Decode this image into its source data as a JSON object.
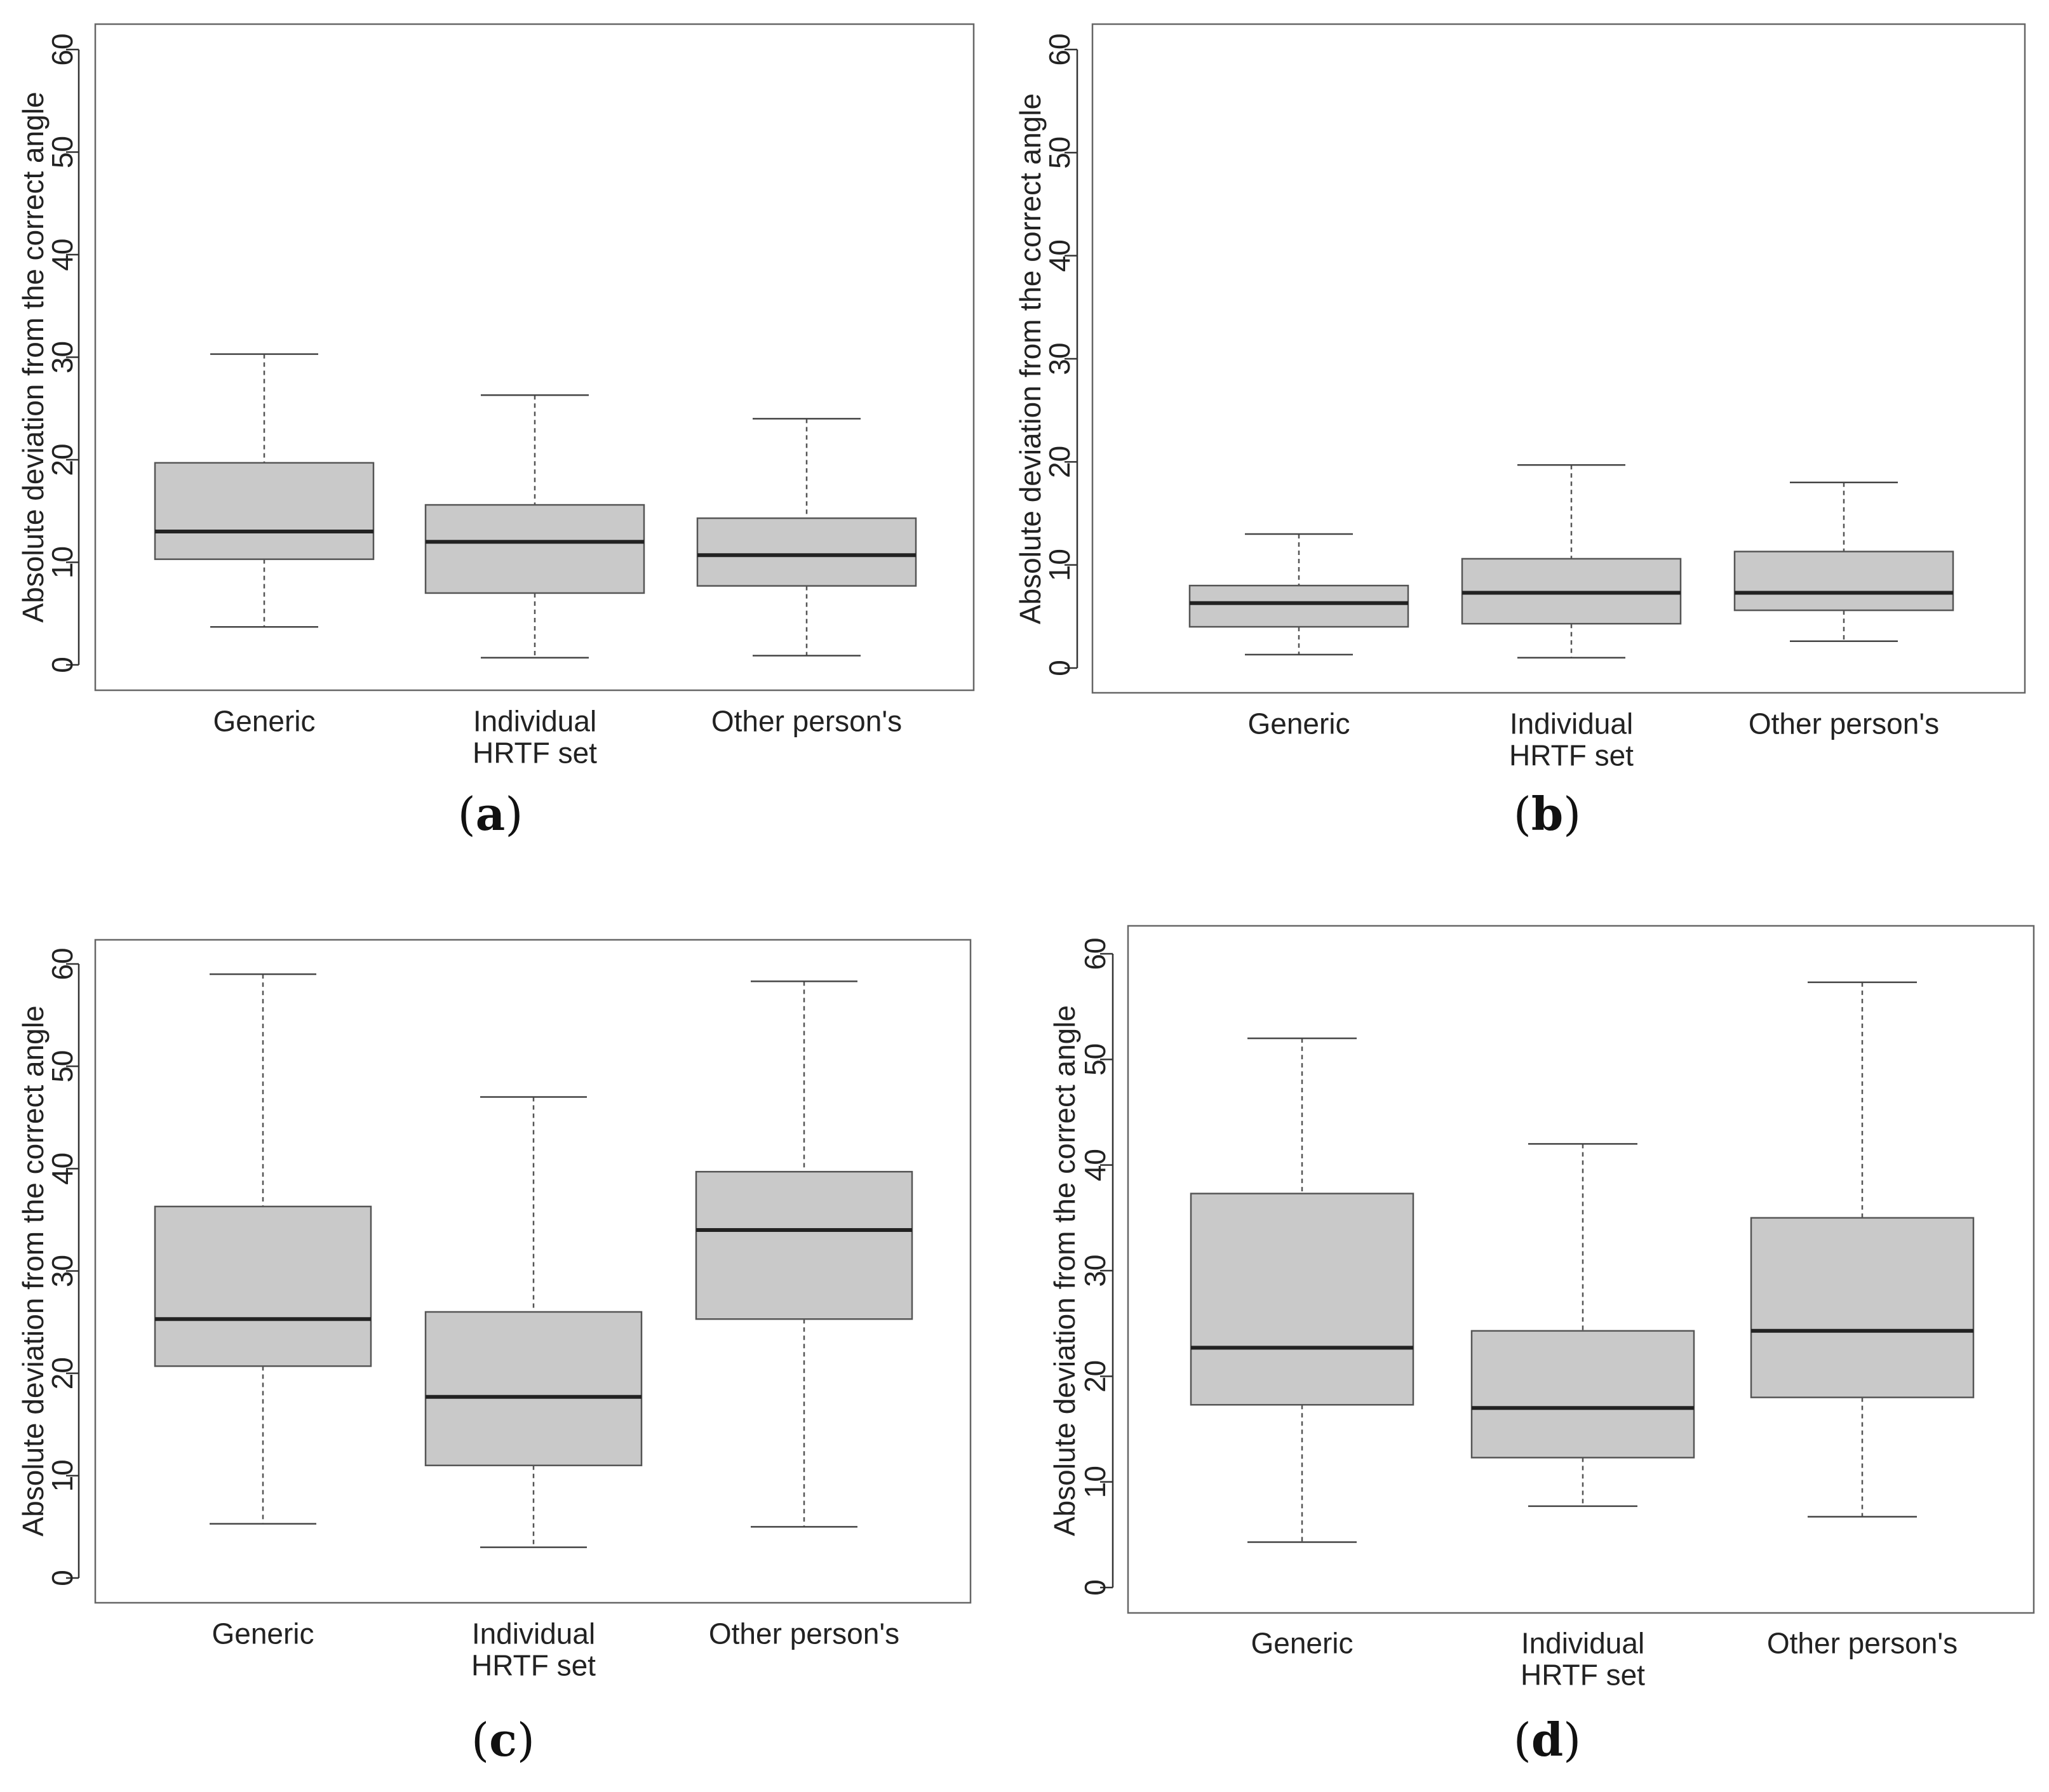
{
  "figure": {
    "panels": [
      {
        "id": "a",
        "label": "a"
      },
      {
        "id": "b",
        "label": "b"
      },
      {
        "id": "c",
        "label": "c"
      },
      {
        "id": "d",
        "label": "d"
      }
    ]
  },
  "chart_data": [
    {
      "panel": "a",
      "type": "boxplot",
      "ylabel": "Absolute deviation from the correct angle",
      "ylim": [
        0,
        60
      ],
      "yticks": [
        "0",
        "10",
        "20",
        "30",
        "40",
        "50",
        "60"
      ],
      "categories": [
        [
          "Generic"
        ],
        [
          "Individual",
          "HRTF set"
        ],
        [
          "Other person's"
        ]
      ],
      "boxes": [
        {
          "min": 3.7,
          "q1": 10.3,
          "median": 13.0,
          "q3": 19.7,
          "max": 30.3
        },
        {
          "min": 0.7,
          "q1": 7.0,
          "median": 12.0,
          "q3": 15.6,
          "max": 26.3
        },
        {
          "min": 0.9,
          "q1": 7.7,
          "median": 10.7,
          "q3": 14.3,
          "max": 24.0
        }
      ]
    },
    {
      "panel": "b",
      "type": "boxplot",
      "ylabel": "Absolute deviation from the correct angle",
      "ylim": [
        0,
        60
      ],
      "yticks": [
        "0",
        "10",
        "20",
        "30",
        "40",
        "50",
        "60"
      ],
      "categories": [
        [
          "Generic"
        ],
        [
          "Individual",
          "HRTF set"
        ],
        [
          "Other person's"
        ]
      ],
      "boxes": [
        {
          "min": 1.3,
          "q1": 4.0,
          "median": 6.3,
          "q3": 8.0,
          "max": 13.0
        },
        {
          "min": 1.0,
          "q1": 4.3,
          "median": 7.3,
          "q3": 10.6,
          "max": 19.7
        },
        {
          "min": 2.6,
          "q1": 5.6,
          "median": 7.3,
          "q3": 11.3,
          "max": 18.0
        }
      ]
    },
    {
      "panel": "c",
      "type": "boxplot",
      "ylabel": "Absolute deviation from the correct angle",
      "ylim": [
        0,
        60
      ],
      "yticks": [
        "0",
        "10",
        "20",
        "30",
        "40",
        "50",
        "60"
      ],
      "categories": [
        [
          "Generic"
        ],
        [
          "Individual",
          "HRTF set"
        ],
        [
          "Other person's"
        ]
      ],
      "boxes": [
        {
          "min": 5.3,
          "q1": 20.7,
          "median": 25.3,
          "q3": 36.3,
          "max": 59.0
        },
        {
          "min": 3.0,
          "q1": 11.0,
          "median": 17.7,
          "q3": 26.0,
          "max": 47.0
        },
        {
          "min": 5.0,
          "q1": 25.3,
          "median": 34.0,
          "q3": 39.7,
          "max": 58.3
        }
      ]
    },
    {
      "panel": "d",
      "type": "boxplot",
      "ylabel": "Absolute deviation from the correct angle",
      "ylim": [
        0,
        60
      ],
      "yticks": [
        "0",
        "10",
        "20",
        "30",
        "40",
        "50",
        "60"
      ],
      "categories": [
        [
          "Generic"
        ],
        [
          "Individual",
          "HRTF set"
        ],
        [
          "Other person's"
        ]
      ],
      "boxes": [
        {
          "min": 4.3,
          "q1": 17.3,
          "median": 22.7,
          "q3": 37.3,
          "max": 52.0
        },
        {
          "min": 7.7,
          "q1": 12.3,
          "median": 17.0,
          "q3": 24.3,
          "max": 42.0
        },
        {
          "min": 6.7,
          "q1": 18.0,
          "median": 24.3,
          "q3": 35.0,
          "max": 57.3
        }
      ]
    }
  ]
}
